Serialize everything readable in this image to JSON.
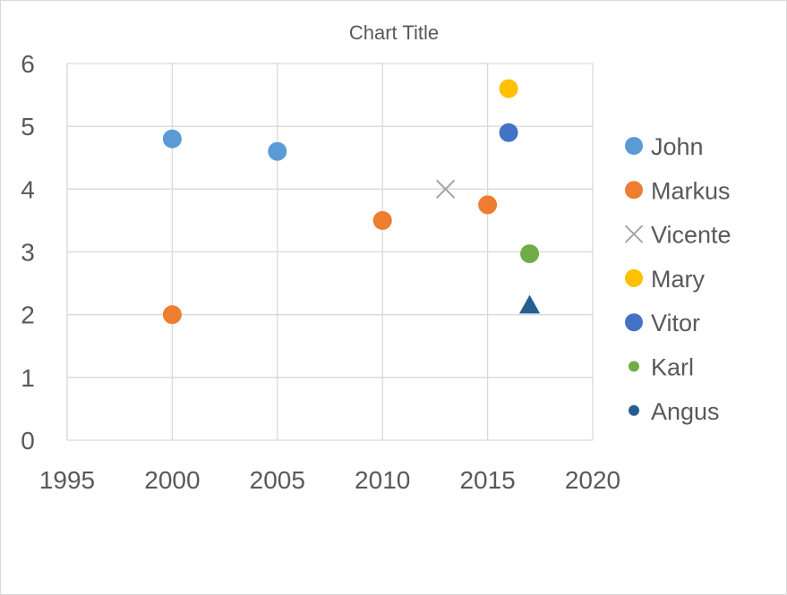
{
  "chart_data": {
    "type": "scatter",
    "title": "Chart Title",
    "xlabel": "",
    "ylabel": "",
    "xlim": [
      1995,
      2020
    ],
    "ylim": [
      0,
      6
    ],
    "x_ticks": [
      1995,
      2000,
      2005,
      2010,
      2015,
      2020
    ],
    "y_ticks": [
      0,
      1,
      2,
      3,
      4,
      5,
      6
    ],
    "grid": true,
    "legend_position": "right",
    "series": [
      {
        "name": "John",
        "marker": "circle",
        "color": "#5B9BD5",
        "points": [
          {
            "x": 2000,
            "y": 4.8
          },
          {
            "x": 2005,
            "y": 4.6
          }
        ]
      },
      {
        "name": "Markus",
        "marker": "circle",
        "color": "#ED7D31",
        "points": [
          {
            "x": 2000,
            "y": 2.0
          },
          {
            "x": 2010,
            "y": 3.5
          },
          {
            "x": 2015,
            "y": 3.75
          }
        ]
      },
      {
        "name": "Vicente",
        "marker": "x",
        "color": "#A5A5A5",
        "points": [
          {
            "x": 2013,
            "y": 4.0
          }
        ]
      },
      {
        "name": "Mary",
        "marker": "circle",
        "color": "#FFC000",
        "points": [
          {
            "x": 2016,
            "y": 5.6
          }
        ]
      },
      {
        "name": "Vitor",
        "marker": "circle",
        "color": "#4472C4",
        "points": [
          {
            "x": 2016,
            "y": 4.9
          }
        ]
      },
      {
        "name": "Karl",
        "marker": "circle",
        "color": "#70AD47",
        "points": [
          {
            "x": 2017,
            "y": 2.97
          }
        ]
      },
      {
        "name": "Angus",
        "marker": "triangle",
        "color": "#255E91",
        "points": [
          {
            "x": 2017,
            "y": 2.15
          }
        ]
      }
    ]
  }
}
